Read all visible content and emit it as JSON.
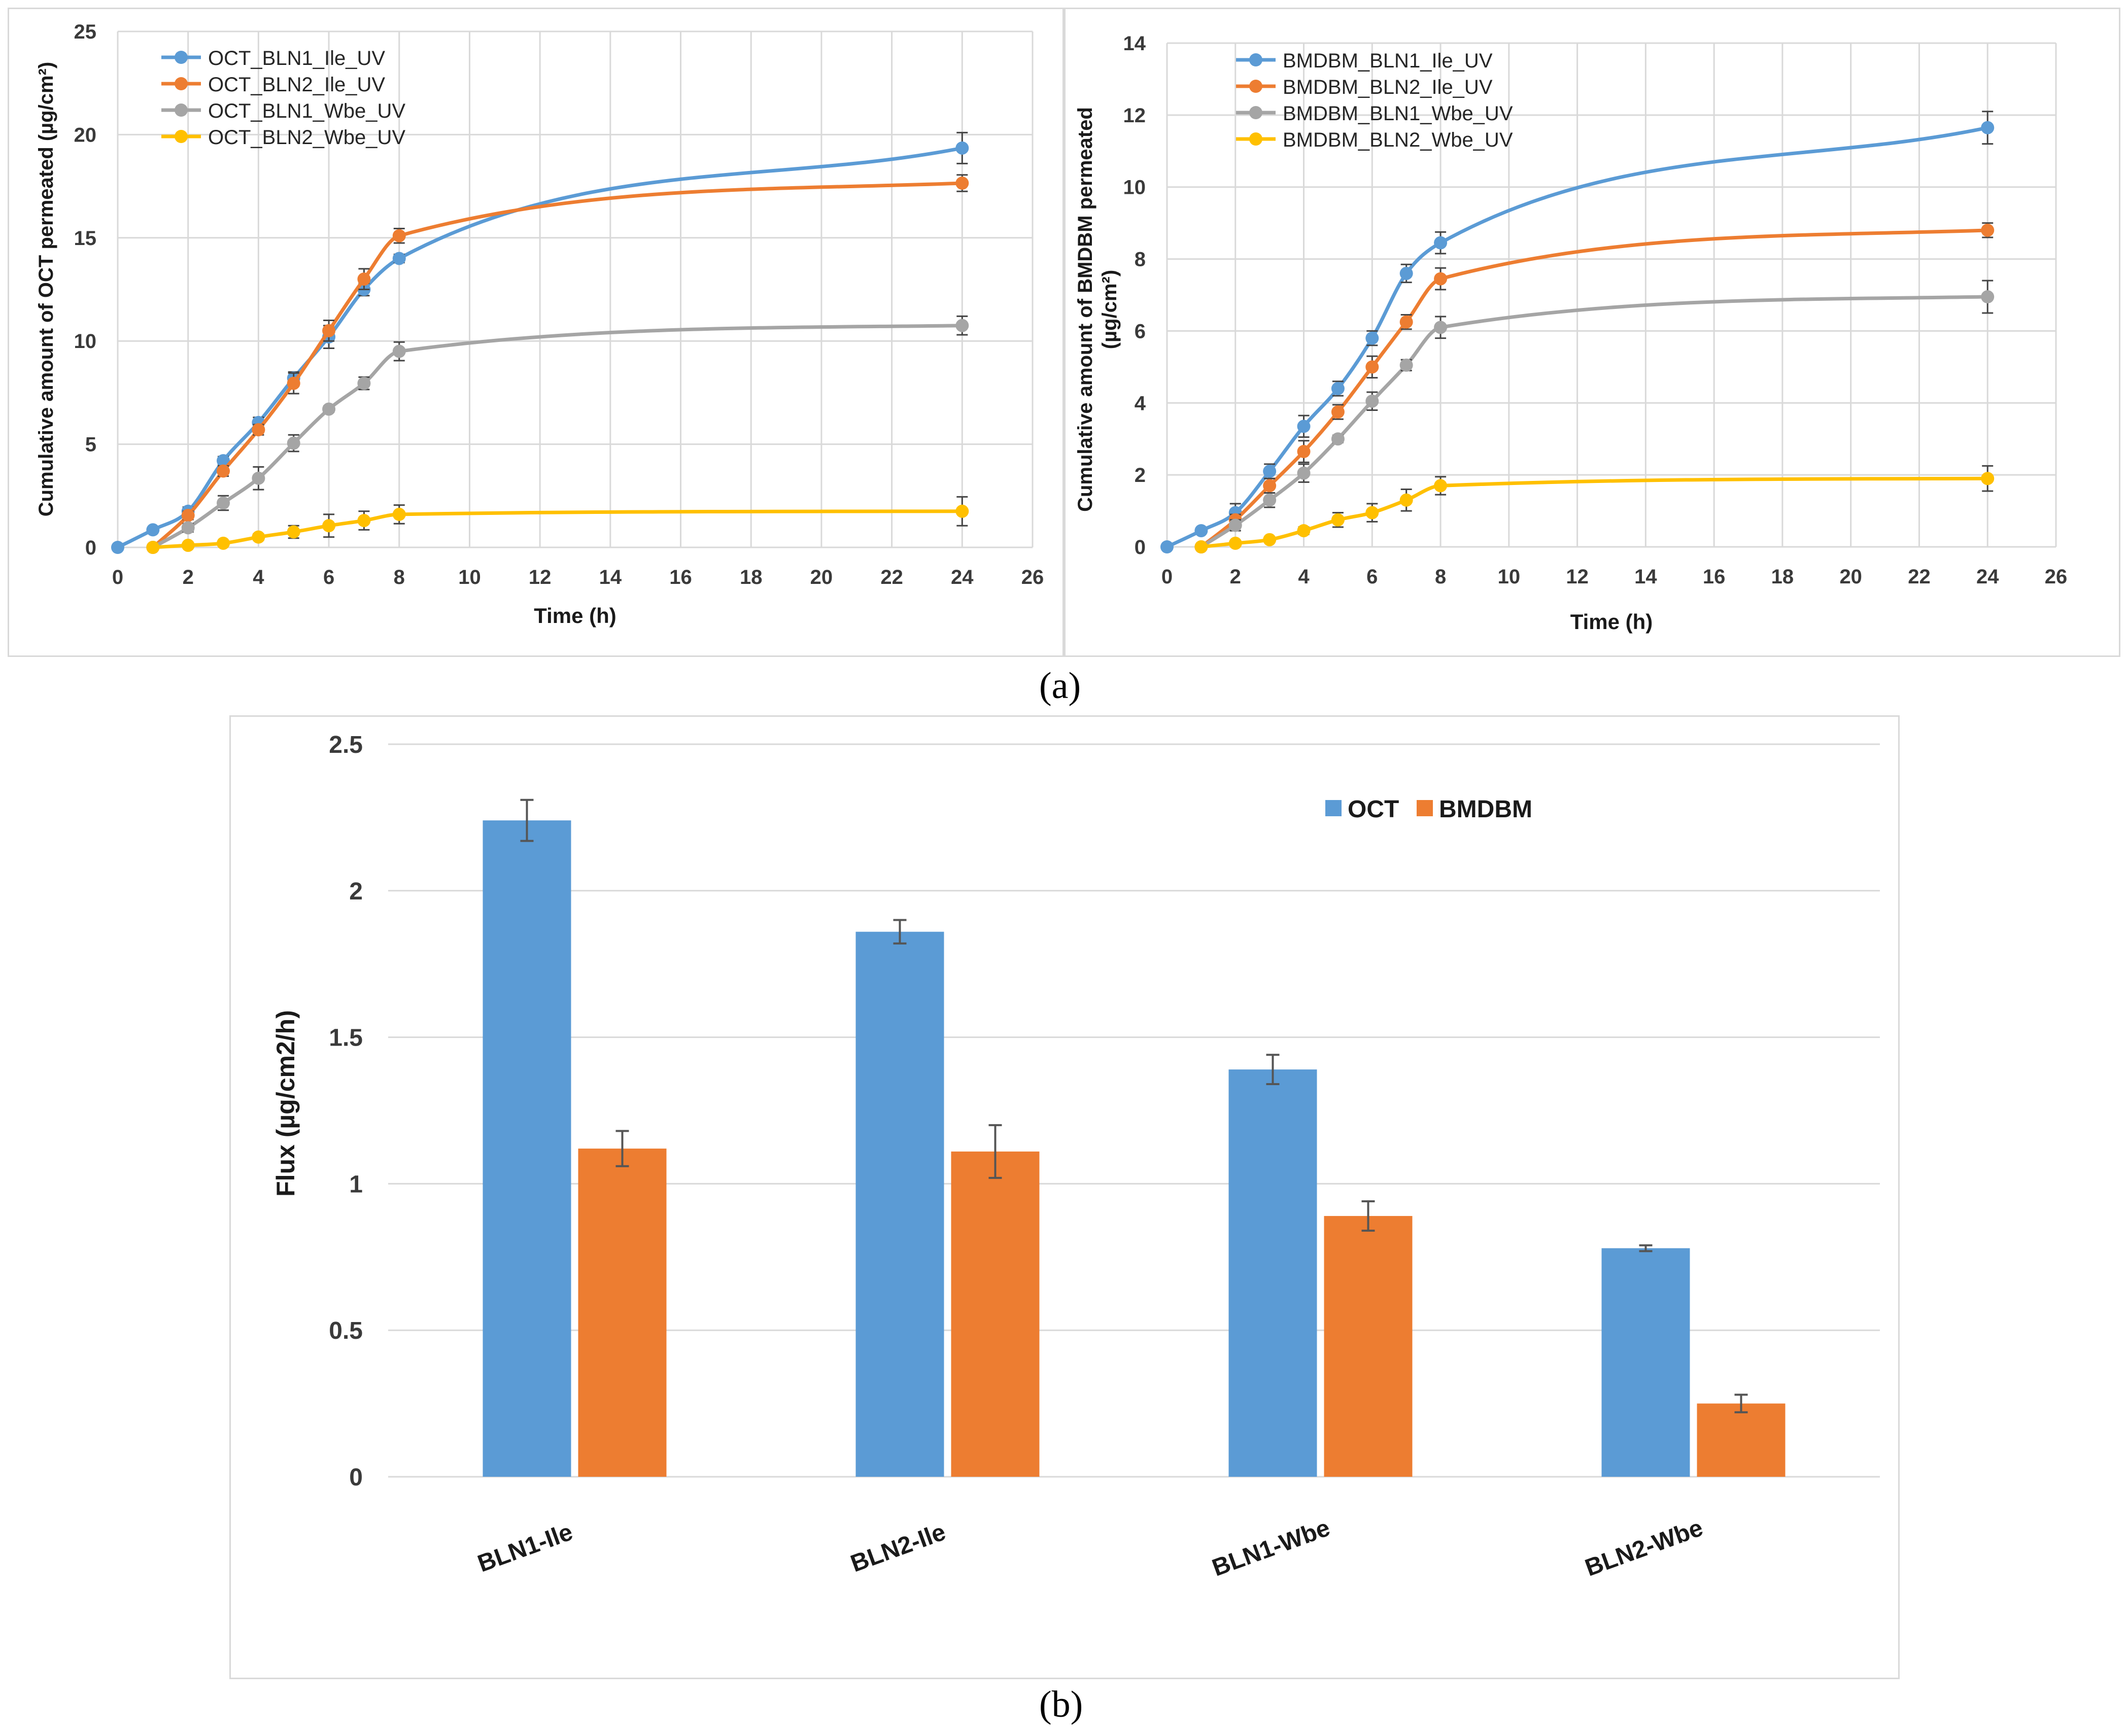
{
  "figure": {
    "caption_a": "(a)",
    "caption_b": "(b)"
  },
  "chart_data": [
    {
      "type": "line",
      "panel": "a-left",
      "title": "",
      "xlabel": "Time (h)",
      "ylabel": "Cumulative amount of OCT permeated (µg/cm²)",
      "xlim": [
        0,
        26
      ],
      "ylim": [
        0,
        25
      ],
      "xticks": [
        "0",
        "2",
        "4",
        "6",
        "8",
        "10",
        "12",
        "14",
        "16",
        "18",
        "20",
        "22",
        "24",
        "26"
      ],
      "yticks": [
        "0",
        "5",
        "10",
        "15",
        "20",
        "25"
      ],
      "x": [
        0,
        1,
        2,
        3,
        4,
        5,
        6,
        7,
        8,
        24
      ],
      "legend_position": "top-left",
      "series": [
        {
          "name": "OCT_BLN1_Ile_UV",
          "color": "#5b9bd5",
          "x": [
            0,
            1,
            2,
            3,
            4,
            5,
            6,
            7,
            8,
            24
          ],
          "values": [
            0,
            0.85,
            1.75,
            4.2,
            6.05,
            8.2,
            10.2,
            12.5,
            14.0,
            19.35
          ],
          "errors": [
            0,
            0.1,
            0.2,
            0.2,
            0.25,
            0.3,
            0.55,
            0.3,
            0.2,
            0.75
          ]
        },
        {
          "name": "OCT_BLN2_Ile_UV",
          "color": "#ed7d31",
          "x": [
            1,
            2,
            3,
            4,
            5,
            6,
            7,
            8,
            24
          ],
          "values": [
            0,
            1.55,
            3.7,
            5.7,
            7.95,
            10.5,
            13.0,
            15.1,
            17.65
          ],
          "errors": [
            0,
            0.2,
            0.25,
            0.25,
            0.5,
            0.5,
            0.5,
            0.35,
            0.4
          ]
        },
        {
          "name": "OCT_BLN1_Wbe_UV",
          "color": "#a5a5a5",
          "x": [
            1,
            2,
            3,
            4,
            5,
            6,
            7,
            8,
            24
          ],
          "values": [
            0,
            0.95,
            2.15,
            3.35,
            5.05,
            6.7,
            7.95,
            9.5,
            10.75
          ],
          "errors": [
            0,
            0.2,
            0.35,
            0.55,
            0.4,
            0.15,
            0.3,
            0.45,
            0.45
          ]
        },
        {
          "name": "OCT_BLN2_Wbe_UV",
          "color": "#ffc000",
          "x": [
            1,
            2,
            3,
            4,
            5,
            6,
            7,
            8,
            24
          ],
          "values": [
            0,
            0.1,
            0.2,
            0.5,
            0.75,
            1.05,
            1.3,
            1.6,
            1.75
          ],
          "errors": [
            0,
            0.05,
            0.1,
            0.15,
            0.3,
            0.55,
            0.45,
            0.45,
            0.7
          ]
        }
      ]
    },
    {
      "type": "line",
      "panel": "a-right",
      "title": "",
      "xlabel": "Time (h)",
      "ylabel": "Cumulative amount of BMDBM permeated (µg/cm²)",
      "ylabel_lines": [
        "Cumulative amount of BMDBM permeated",
        "(µg/cm²)"
      ],
      "xlim": [
        0,
        26
      ],
      "ylim": [
        0,
        14
      ],
      "xticks": [
        "0",
        "2",
        "4",
        "6",
        "8",
        "10",
        "12",
        "14",
        "16",
        "18",
        "20",
        "22",
        "24",
        "26"
      ],
      "yticks": [
        "0",
        "2",
        "4",
        "6",
        "8",
        "10",
        "12",
        "14"
      ],
      "legend_position": "top-left",
      "series": [
        {
          "name": "BMDBM_BLN1_Ile_UV",
          "color": "#5b9bd5",
          "x": [
            0,
            1,
            2,
            3,
            4,
            5,
            6,
            7,
            8,
            24
          ],
          "values": [
            0,
            0.45,
            0.95,
            2.1,
            3.35,
            4.4,
            5.8,
            7.6,
            8.45,
            11.65
          ],
          "errors": [
            0,
            0.05,
            0.25,
            0.2,
            0.3,
            0.2,
            0.2,
            0.25,
            0.3,
            0.45
          ]
        },
        {
          "name": "BMDBM_BLN2_Ile_UV",
          "color": "#ed7d31",
          "x": [
            1,
            2,
            3,
            4,
            5,
            6,
            7,
            8,
            24
          ],
          "values": [
            0,
            0.75,
            1.7,
            2.65,
            3.75,
            5.0,
            6.25,
            7.45,
            8.8
          ],
          "errors": [
            0,
            0.15,
            0.2,
            0.3,
            0.2,
            0.3,
            0.2,
            0.3,
            0.2
          ]
        },
        {
          "name": "BMDBM_BLN1_Wbe_UV",
          "color": "#a5a5a5",
          "x": [
            1,
            2,
            3,
            4,
            5,
            6,
            7,
            8,
            24
          ],
          "values": [
            0,
            0.6,
            1.3,
            2.05,
            3.0,
            4.05,
            5.05,
            6.1,
            6.95
          ],
          "errors": [
            0,
            0.15,
            0.2,
            0.25,
            0.1,
            0.25,
            0.15,
            0.3,
            0.45
          ]
        },
        {
          "name": "BMDBM_BLN2_Wbe_UV",
          "color": "#ffc000",
          "x": [
            1,
            2,
            3,
            4,
            5,
            6,
            7,
            8,
            24
          ],
          "values": [
            0,
            0.1,
            0.2,
            0.45,
            0.75,
            0.95,
            1.3,
            1.7,
            1.9
          ],
          "errors": [
            0,
            0.05,
            0.05,
            0.1,
            0.2,
            0.25,
            0.3,
            0.25,
            0.35
          ]
        }
      ]
    },
    {
      "type": "bar",
      "panel": "b",
      "title": "",
      "xlabel": "",
      "ylabel": "Flux (µg/cm2/h)",
      "ylim": [
        0,
        2.5
      ],
      "yticks": [
        "0",
        "0.5",
        "1",
        "1.5",
        "2",
        "2.5"
      ],
      "categories": [
        "BLN1-Ile",
        "BLN2-Ile",
        "BLN1-Wbe",
        "BLN2-Wbe"
      ],
      "legend_position": "top-right",
      "series": [
        {
          "name": "OCT",
          "color": "#5b9bd5",
          "values": [
            2.24,
            1.86,
            1.39,
            0.78
          ],
          "errors": [
            0.07,
            0.04,
            0.05,
            0.01
          ]
        },
        {
          "name": "BMDBM",
          "color": "#ed7d31",
          "values": [
            1.12,
            1.11,
            0.89,
            0.25
          ],
          "errors": [
            0.06,
            0.09,
            0.05,
            0.03
          ]
        }
      ]
    }
  ]
}
